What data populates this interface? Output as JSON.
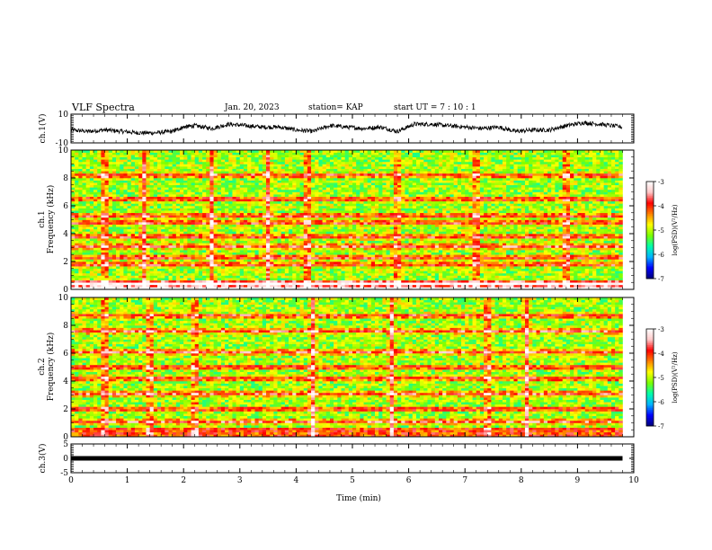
{
  "header": {
    "title": "VLF Spectra",
    "date": "Jan. 20, 2023",
    "station": "station= KAP",
    "start": "start  UT  =   7 : 10 : 1"
  },
  "chart_data": [
    {
      "type": "line",
      "ylabel": "ch.1(V)",
      "ylim": [
        -10,
        10
      ],
      "y_ticks": [
        "10",
        "-10"
      ],
      "xlim": [
        0,
        10
      ],
      "x": [
        0,
        0.3,
        0.6,
        0.9,
        1.2,
        1.5,
        1.8,
        2.0,
        2.2,
        2.5,
        2.8,
        3.1,
        3.4,
        3.7,
        4.0,
        4.3,
        4.6,
        4.9,
        5.2,
        5.5,
        5.8,
        6.1,
        6.4,
        6.7,
        7.0,
        7.3,
        7.6,
        7.9,
        8.2,
        8.5,
        8.8,
        9.1,
        9.4,
        9.8
      ],
      "values": [
        -1,
        -2,
        -1,
        -2,
        -3,
        -3,
        -2,
        1,
        2,
        0,
        3,
        2,
        1,
        1,
        -1,
        -2,
        2,
        1,
        0,
        1,
        -2,
        3,
        3,
        2,
        1,
        0,
        1,
        -2,
        -1,
        -1,
        2,
        4,
        3,
        1
      ]
    },
    {
      "type": "heatmap",
      "ylabel": "ch.1\nFrequency  (kHz)",
      "ylabel_lines": [
        "ch.1",
        "Frequency  (kHz)"
      ],
      "ylim": [
        0,
        10
      ],
      "y_ticks": [
        "0",
        "2",
        "4",
        "6",
        "8",
        "10"
      ],
      "xlim": [
        0,
        10
      ],
      "colorbar": {
        "label": "log(PSD)(V²/Hz)",
        "range": [
          -7,
          -3
        ],
        "ticks": [
          "-3",
          "-4",
          "-5",
          "-6",
          "-7"
        ]
      },
      "bands_khz": [
        0.1,
        0.4,
        1.8,
        2.3,
        3.1,
        3.8,
        4.8,
        5.3,
        6.5,
        8.2
      ],
      "bursts_min": [
        0.6,
        1.3,
        2.5,
        3.5,
        4.2,
        5.8,
        7.2,
        8.8
      ]
    },
    {
      "type": "heatmap",
      "ylabel": "ch.2\nFrequency  (kHz)",
      "ylabel_lines": [
        "ch.2",
        "Frequency  (kHz)"
      ],
      "ylim": [
        0,
        10
      ],
      "y_ticks": [
        "0",
        "2",
        "4",
        "6",
        "8",
        "10"
      ],
      "xlim": [
        0,
        10
      ],
      "colorbar": {
        "label": "log(PSD)(V²/Hz)",
        "range": [
          -7,
          -3
        ],
        "ticks": [
          "-3",
          "-4",
          "-5",
          "-6",
          "-7"
        ]
      },
      "bands_khz": [
        1.1,
        2.0,
        3.1,
        4.2,
        5.0,
        6.1,
        7.6,
        8.7
      ],
      "bursts_min": [
        0.6,
        1.4,
        2.2,
        4.3,
        5.7,
        7.4,
        8.1
      ]
    },
    {
      "type": "line",
      "ylabel": "ch.3(V)",
      "ylim": [
        -5,
        5
      ],
      "y_ticks": [
        "5",
        "0",
        "-5"
      ],
      "xlim": [
        0,
        10
      ],
      "x": [
        0,
        9.8
      ],
      "values": [
        0,
        0
      ],
      "xlabel": "Time  (min)",
      "x_ticks": [
        "0",
        "1",
        "2",
        "3",
        "4",
        "5",
        "6",
        "7",
        "8",
        "9",
        "10"
      ]
    }
  ],
  "colors": {
    "scale": [
      "#00007a",
      "#0000ff",
      "#00b4ff",
      "#00ffaa",
      "#7cff00",
      "#ffff00",
      "#ff8000",
      "#ff0000",
      "#ffc8c8",
      "#ffffff"
    ]
  }
}
